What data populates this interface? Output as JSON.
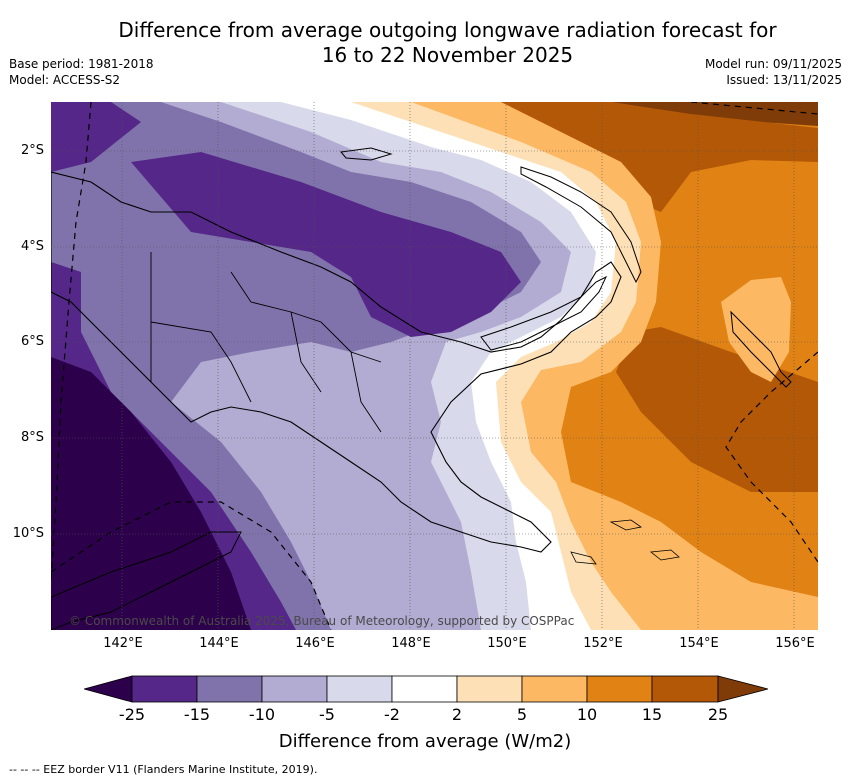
{
  "title": {
    "line1": "Difference from average outgoing longwave radiation forecast for",
    "line2": "16 to 22 November 2025"
  },
  "meta_left": {
    "base_period": "Base period: 1981-2018",
    "model": "Model: ACCESS-S2"
  },
  "meta_right": {
    "model_run": "Model run: 09/11/2025",
    "issued": "Issued: 13/11/2025"
  },
  "map": {
    "latitude_labels": [
      "2°S",
      "4°S",
      "6°S",
      "8°S",
      "10°S"
    ],
    "longitude_labels": [
      "142°E",
      "144°E",
      "146°E",
      "148°E",
      "150°E",
      "152°E",
      "154°E",
      "156°E"
    ],
    "copyright": "© Commonwealth of Australia 2025, Bureau of Meteorology, supported by COSPPac",
    "extent": {
      "lon": [
        140.6,
        156.5
      ],
      "lat": [
        -12,
        -1
      ]
    }
  },
  "legend": {
    "title": "Difference from average (W/m2)",
    "tick_labels": [
      "-25",
      "-15",
      "-10",
      "-5",
      "-2",
      "2",
      "5",
      "10",
      "15",
      "25"
    ],
    "colors": [
      "#2d004b",
      "#542788",
      "#8073ac",
      "#b2abd2",
      "#d8daeb",
      "#ffffff",
      "#fee0b6",
      "#fdb863",
      "#e08214",
      "#b35806",
      "#7f3b08"
    ]
  },
  "footer": "-- --  -- EEZ border V11 (Flanders Marine Institute, 2019)."
}
